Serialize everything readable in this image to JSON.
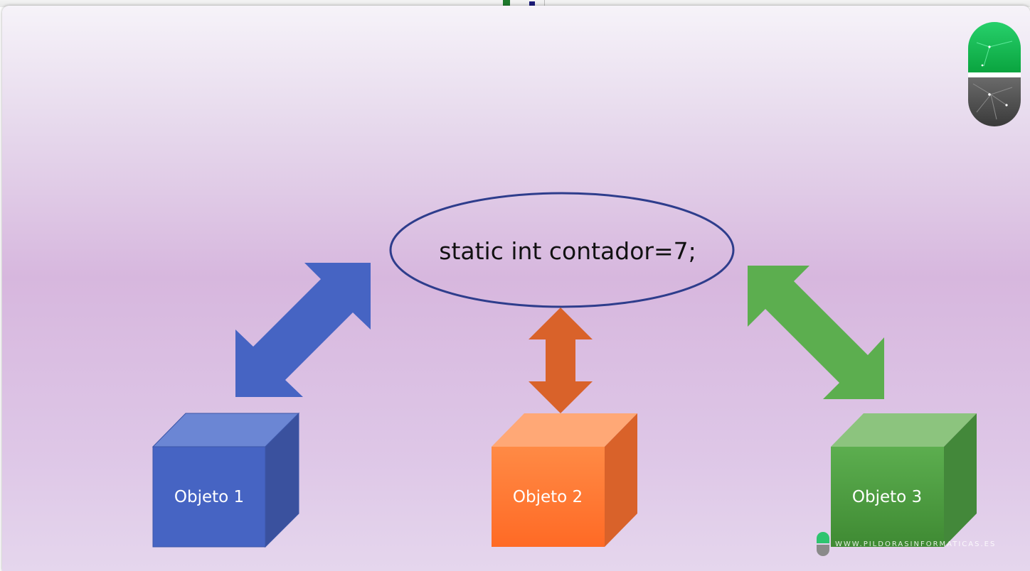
{
  "diagram": {
    "variable_declaration": "static int contador=7;",
    "objects": [
      {
        "label": "Objeto 1",
        "color": "#4664c3"
      },
      {
        "label": "Objeto 2",
        "color": "#ff7a30"
      },
      {
        "label": "Objeto 3",
        "color": "#56a546"
      }
    ],
    "arrow_colors": {
      "left": "#4664c3",
      "center": "#d9622a",
      "right": "#5cae4f"
    }
  },
  "branding": {
    "logo_icon": "pill-logo-icon",
    "watermark": "WWW.PILDORASINFORMATICAS.ES"
  }
}
